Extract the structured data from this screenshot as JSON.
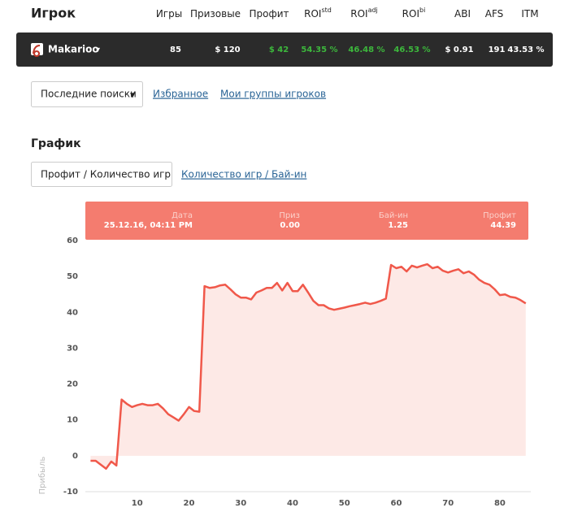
{
  "header": {
    "title": "Игрок",
    "columns": [
      {
        "label": "Игры"
      },
      {
        "label": "Призовые"
      },
      {
        "label": "Профит"
      },
      {
        "label": "ROI",
        "sup": "std"
      },
      {
        "label": "ROI",
        "sup": "adj"
      },
      {
        "label": "ROI",
        "sup": "bi"
      },
      {
        "label": "ABI"
      },
      {
        "label": "AFS"
      },
      {
        "label": "ITM"
      }
    ]
  },
  "player": {
    "name": "Makarioo",
    "values": [
      "85",
      "$ 120",
      "$ 42",
      "54.35 %",
      "46.48 %",
      "46.53 %",
      "$ 0.91",
      "191",
      "43.53 %"
    ]
  },
  "nav": {
    "dropdown": "Последние поиски",
    "links": [
      "Избранное",
      "Мои группы игроков"
    ]
  },
  "section_title": "График",
  "tabs": [
    "Профит / Количество игр",
    "Количество игр / Бай-ин"
  ],
  "tooltip": [
    {
      "label": "Дата",
      "value": "25.12.16, 04:11 PM"
    },
    {
      "label": "Приз",
      "value": "0.00"
    },
    {
      "label": "Бай-ин",
      "value": "1.25"
    },
    {
      "label": "Профит",
      "value": "44.39"
    }
  ],
  "chart_data": {
    "type": "area",
    "y_label": "Прибыль",
    "color": "#f0584a",
    "fill_color": "#fde9e6",
    "x": [
      1,
      2,
      3,
      4,
      5,
      6,
      7,
      8,
      9,
      10,
      11,
      12,
      13,
      14,
      15,
      16,
      17,
      18,
      19,
      20,
      21,
      22,
      23,
      24,
      25,
      26,
      27,
      28,
      29,
      30,
      31,
      32,
      33,
      34,
      35,
      36,
      37,
      38,
      39,
      40,
      41,
      42,
      43,
      44,
      45,
      46,
      47,
      48,
      49,
      50,
      51,
      52,
      53,
      54,
      55,
      56,
      57,
      58,
      59,
      60,
      61,
      62,
      63,
      64,
      65,
      66,
      67,
      68,
      69,
      70,
      71,
      72,
      73,
      74,
      75,
      76,
      77,
      78,
      79,
      80,
      81,
      82,
      83,
      84,
      85
    ],
    "values": [
      -1.4,
      -1.4,
      -2.5,
      -3.6,
      -1.6,
      -2.7,
      15.7,
      14.5,
      13.6,
      14.1,
      14.5,
      14.1,
      14.1,
      14.5,
      13.2,
      11.6,
      10.7,
      9.8,
      11.6,
      13.6,
      12.5,
      12.3,
      47.3,
      46.8,
      47.0,
      47.5,
      47.7,
      46.4,
      45.0,
      44.1,
      44.1,
      43.6,
      45.5,
      46.1,
      46.8,
      46.8,
      48.2,
      46.1,
      48.2,
      45.9,
      45.9,
      47.7,
      45.5,
      43.2,
      42.0,
      42.0,
      41.1,
      40.7,
      41.0,
      41.3,
      41.7,
      42.0,
      42.3,
      42.7,
      42.3,
      42.7,
      43.2,
      43.8,
      53.2,
      52.3,
      52.7,
      51.4,
      53.0,
      52.5,
      53.0,
      53.4,
      52.3,
      52.7,
      51.6,
      51.1,
      51.6,
      52.0,
      50.9,
      51.4,
      50.5,
      49.1,
      48.2,
      47.7,
      46.4,
      44.8,
      45.0,
      44.3,
      44.1,
      43.4,
      42.5
    ],
    "xlim": [
      0,
      85.5
    ],
    "ylim": [
      -10,
      60
    ],
    "xticks": [
      10,
      20,
      30,
      40,
      50,
      60,
      70,
      80
    ],
    "yticks": [
      -10,
      0,
      10,
      20,
      30,
      40,
      50,
      60
    ],
    "grid": false
  }
}
